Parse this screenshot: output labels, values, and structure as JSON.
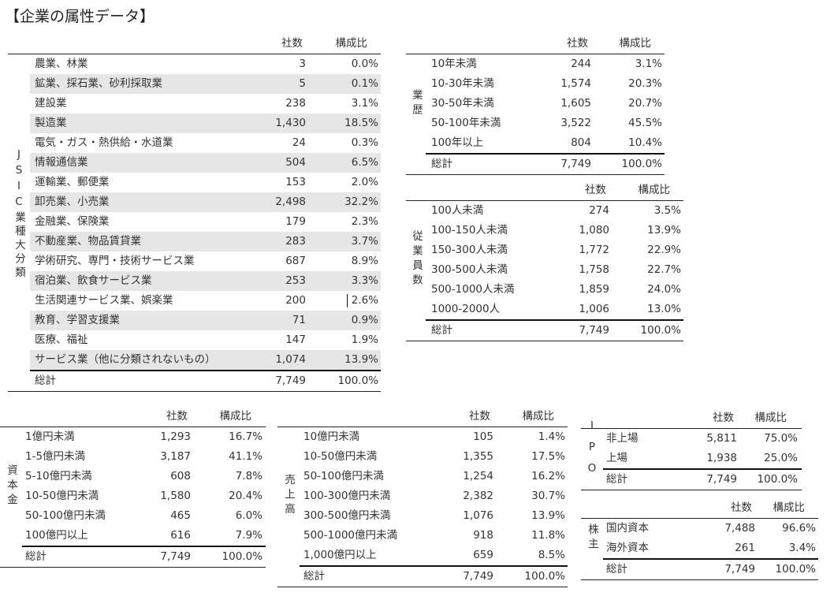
{
  "title": "【企業の属性データ】",
  "columns": {
    "count": "社数",
    "ratio": "構成比"
  },
  "tables": [
    {
      "key": "jsic",
      "label": "JSIC業種大分類",
      "rows": [
        [
          "農業、林業",
          "3",
          "0.0%"
        ],
        [
          "鉱業、採石業、砂利採取業",
          "5",
          "0.1%"
        ],
        [
          "建設業",
          "238",
          "3.1%"
        ],
        [
          "製造業",
          "1,430",
          "18.5%"
        ],
        [
          "電気・ガス・熱供給・水道業",
          "24",
          "0.3%"
        ],
        [
          "情報通信業",
          "504",
          "6.5%"
        ],
        [
          "運輸業、郵便業",
          "153",
          "2.0%"
        ],
        [
          "卸売業、小売業",
          "2,498",
          "32.2%"
        ],
        [
          "金融業、保険業",
          "179",
          "2.3%"
        ],
        [
          "不動産業、物品賃貸業",
          "283",
          "3.7%"
        ],
        [
          "学術研究、専門・技術サービス業",
          "687",
          "8.9%"
        ],
        [
          "宿泊業、飲食サービス業",
          "253",
          "3.3%"
        ],
        [
          "生活関連サービス業、娯楽業",
          "200",
          "2.6%"
        ],
        [
          "教育、学習支援業",
          "71",
          "0.9%"
        ],
        [
          "医療、福祉",
          "147",
          "1.9%"
        ],
        [
          "サービス業（他に分類されないもの）",
          "1,074",
          "13.9%"
        ]
      ],
      "total": [
        "総計",
        "7,749",
        "100.0%"
      ]
    },
    {
      "key": "history",
      "label": "業歴",
      "rows": [
        [
          "10年未満",
          "244",
          "3.1%"
        ],
        [
          "10-30年未満",
          "1,574",
          "20.3%"
        ],
        [
          "30-50年未満",
          "1,605",
          "20.7%"
        ],
        [
          "50-100年未満",
          "3,522",
          "45.5%"
        ],
        [
          "100年以上",
          "804",
          "10.4%"
        ]
      ],
      "total": [
        "総計",
        "7,749",
        "100.0%"
      ]
    },
    {
      "key": "employees",
      "label": "従業員数",
      "rows": [
        [
          "100人未満",
          "274",
          "3.5%"
        ],
        [
          "100-150人未満",
          "1,080",
          "13.9%"
        ],
        [
          "150-300人未満",
          "1,772",
          "22.9%"
        ],
        [
          "300-500人未満",
          "1,758",
          "22.7%"
        ],
        [
          "500-1000人未満",
          "1,859",
          "24.0%"
        ],
        [
          "1000-2000人",
          "1,006",
          "13.0%"
        ]
      ],
      "total": [
        "総計",
        "7,749",
        "100.0%"
      ]
    },
    {
      "key": "capital",
      "label": "資本金",
      "rows": [
        [
          "1億円未満",
          "1,293",
          "16.7%"
        ],
        [
          "1-5億円未満",
          "3,187",
          "41.1%"
        ],
        [
          "5-10億円未満",
          "608",
          "7.8%"
        ],
        [
          "10-50億円未満",
          "1,580",
          "20.4%"
        ],
        [
          "50-100億円未満",
          "465",
          "6.0%"
        ],
        [
          "100億円以上",
          "616",
          "7.9%"
        ]
      ],
      "total": [
        "総計",
        "7,749",
        "100.0%"
      ]
    },
    {
      "key": "sales",
      "label": "売上高",
      "rows": [
        [
          "10億円未満",
          "105",
          "1.4%"
        ],
        [
          "10-50億円未満",
          "1,355",
          "17.5%"
        ],
        [
          "50-100億円未満",
          "1,254",
          "16.2%"
        ],
        [
          "100-300億円未満",
          "2,382",
          "30.7%"
        ],
        [
          "300-500億円未満",
          "1,076",
          "13.9%"
        ],
        [
          "500-1000億円未満",
          "918",
          "11.8%"
        ],
        [
          "1,000億円以上",
          "659",
          "8.5%"
        ]
      ],
      "total": [
        "総計",
        "7,749",
        "100.0%"
      ]
    },
    {
      "key": "ipo",
      "label": "IPO",
      "rows": [
        [
          "非上場",
          "5,811",
          "75.0%"
        ],
        [
          "上場",
          "1,938",
          "25.0%"
        ]
      ],
      "total": [
        "総計",
        "7,749",
        "100.0%"
      ]
    },
    {
      "key": "shareholder",
      "label": "株主",
      "rows": [
        [
          "国内資本",
          "7,488",
          "96.6%"
        ],
        [
          "海外資本",
          "261",
          "3.4%"
        ]
      ],
      "total": [
        "総計",
        "7,749",
        "100.0%"
      ]
    }
  ]
}
